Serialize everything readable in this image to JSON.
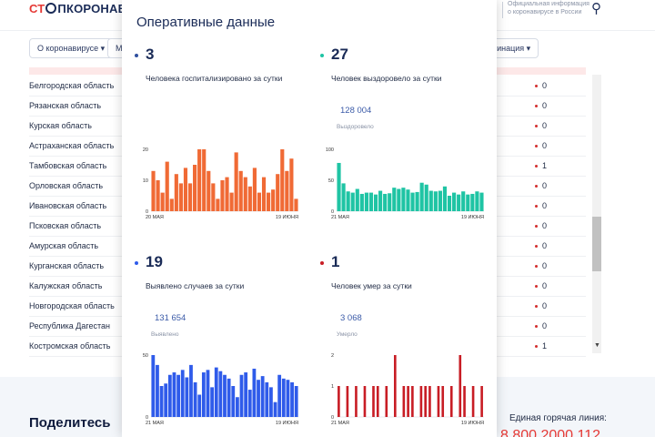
{
  "header": {
    "logo_st": "СТ",
    "logo_rest": "ПКОРОНАВ",
    "official_text": "Официальная информация о коронавирусе в России",
    "search_icon": "search-icon"
  },
  "nav": {
    "items": [
      {
        "label": "О коронавирусе ▾"
      },
      {
        "label": "М"
      },
      {
        "label": "кцинация ▾"
      }
    ]
  },
  "regions": [
    {
      "name": "Белгородская область",
      "value": "0"
    },
    {
      "name": "Рязанская область",
      "value": "0"
    },
    {
      "name": "Курская область",
      "value": "0"
    },
    {
      "name": "Астраханская область",
      "value": "0"
    },
    {
      "name": "Тамбовская область",
      "value": "1"
    },
    {
      "name": "Орловская область",
      "value": "0"
    },
    {
      "name": "Ивановская область",
      "value": "0"
    },
    {
      "name": "Псковская область",
      "value": "0"
    },
    {
      "name": "Амурская область",
      "value": "0"
    },
    {
      "name": "Курганская область",
      "value": "0"
    },
    {
      "name": "Калужская область",
      "value": "0"
    },
    {
      "name": "Новгородская область",
      "value": "0"
    },
    {
      "name": "Республика Дагестан",
      "value": "0"
    },
    {
      "name": "Костромская область",
      "value": "1"
    }
  ],
  "footer": {
    "share": "Поделитесь",
    "hotline": "Единая горячая линия:",
    "phone": "8 800 2000 112"
  },
  "modal": {
    "title": "Оперативные данные",
    "cards": {
      "hospitalized": {
        "number": "3",
        "label": "Человека госпитализировано за сутки",
        "color": "#f06a35",
        "dot": "#2f4f9f"
      },
      "recovered": {
        "number": "27",
        "label": "Человек выздоровело за сутки",
        "total": "128 004",
        "total_label": "Выздоровело",
        "color": "#1fc4a4",
        "dot": "#1fc4a4"
      },
      "cases": {
        "number": "19",
        "label": "Выявлено случаев за сутки",
        "total": "131 654",
        "total_label": "Выявлено",
        "color": "#2f5bea",
        "dot": "#2f5bea"
      },
      "deaths": {
        "number": "1",
        "label": "Человек умер за сутки",
        "total": "3 068",
        "total_label": "Умерло",
        "color": "#c81d25",
        "dot": "#c81d25"
      }
    }
  },
  "chart_data": [
    {
      "type": "bar",
      "name": "hospitalized",
      "x_start": "20 МАЯ",
      "x_end": "19 ИЮНЯ",
      "yticks": [
        "0",
        "10",
        "20"
      ],
      "ylim": [
        0,
        20
      ],
      "values": [
        13,
        10,
        6,
        16,
        4,
        12,
        9,
        14,
        9,
        15,
        20,
        20,
        13,
        9,
        4,
        10,
        11,
        6,
        19,
        13,
        11,
        8,
        14,
        6,
        11,
        6,
        7,
        12,
        20,
        13,
        17,
        4
      ]
    },
    {
      "type": "bar",
      "name": "recovered",
      "x_start": "21 МАЯ",
      "x_end": "19 ИЮНЯ",
      "yticks": [
        "0",
        "50",
        "100"
      ],
      "ylim": [
        0,
        100
      ],
      "values": [
        78,
        45,
        32,
        30,
        36,
        28,
        30,
        30,
        27,
        33,
        28,
        29,
        38,
        36,
        38,
        35,
        30,
        31,
        46,
        43,
        33,
        32,
        33,
        40,
        25,
        30,
        27,
        32,
        27,
        28,
        32,
        30
      ]
    },
    {
      "type": "bar",
      "name": "cases",
      "x_start": "21 МАЯ",
      "x_end": "19 ИЮНЯ",
      "yticks": [
        "0",
        "50"
      ],
      "ylim": [
        0,
        50
      ],
      "values": [
        50,
        42,
        25,
        27,
        34,
        36,
        34,
        38,
        32,
        42,
        28,
        18,
        36,
        38,
        24,
        40,
        37,
        34,
        31,
        25,
        16,
        34,
        36,
        22,
        39,
        30,
        33,
        28,
        24,
        12,
        34,
        31,
        30,
        28,
        25
      ]
    },
    {
      "type": "bar",
      "name": "deaths",
      "x_start": "21 МАЯ",
      "x_end": "19 ИЮНЯ",
      "yticks": [
        "0",
        "1",
        "2"
      ],
      "ylim": [
        0,
        2
      ],
      "values": [
        1,
        0,
        1,
        0,
        1,
        0,
        1,
        0,
        1,
        1,
        0,
        1,
        0,
        2,
        0,
        1,
        1,
        1,
        0,
        1,
        1,
        1,
        0,
        1,
        1,
        0,
        1,
        0,
        2,
        1,
        0,
        1,
        0,
        1
      ]
    }
  ]
}
